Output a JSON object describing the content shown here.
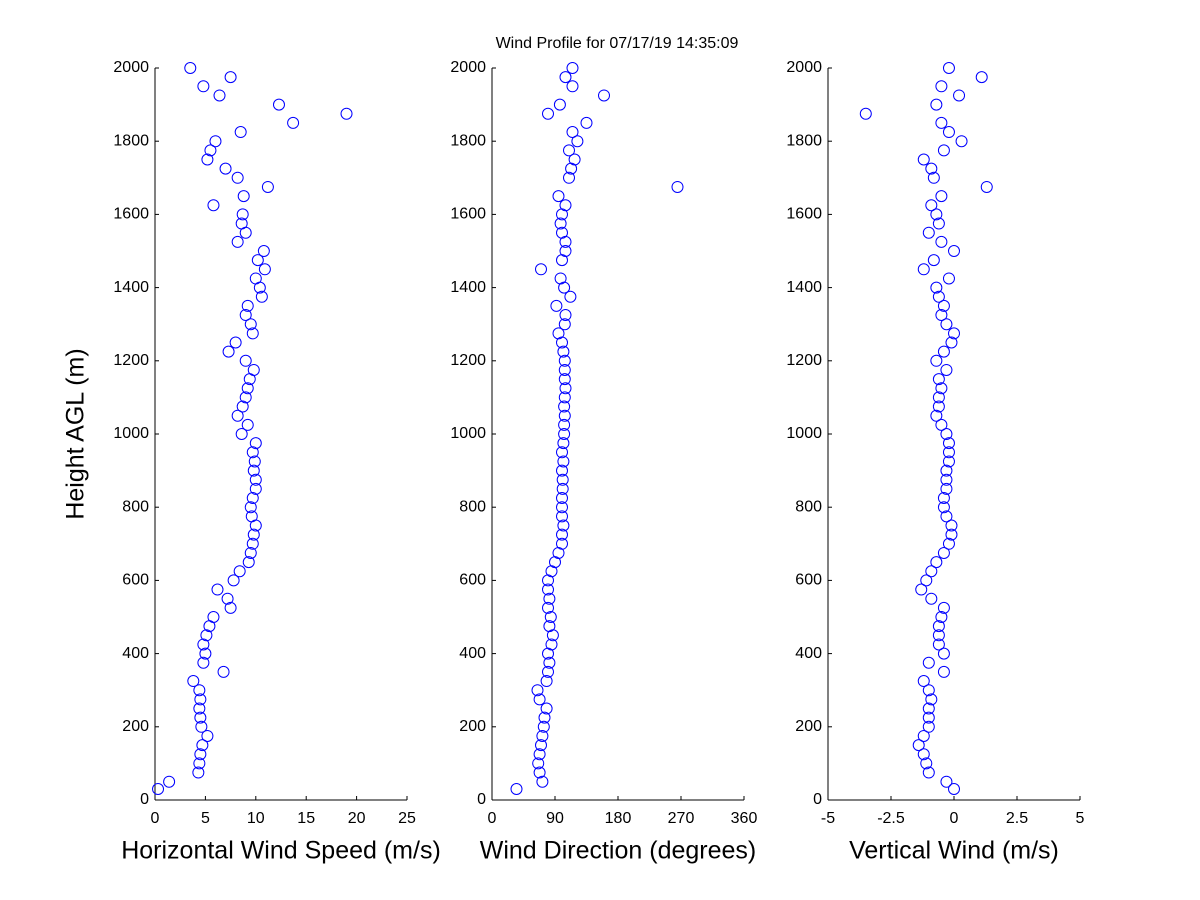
{
  "title": "Wind Profile for  07/17/19 14:35:09",
  "chart_data": [
    {
      "type": "scatter",
      "xlabel": "Horizontal Wind Speed (m/s)",
      "ylabel": "Height AGL (m)",
      "color": "#0000ff",
      "xlim": [
        0,
        25
      ],
      "xticks": [
        0,
        5,
        10,
        15,
        20,
        25
      ],
      "ylim": [
        0,
        2000
      ],
      "yticks": [
        0,
        200,
        400,
        600,
        800,
        1000,
        1200,
        1400,
        1600,
        1800,
        2000
      ],
      "x": [
        0.3,
        1.4,
        4.3,
        4.4,
        4.5,
        4.7,
        5.2,
        4.6,
        4.5,
        4.4,
        4.5,
        4.4,
        3.8,
        6.8,
        4.8,
        5.0,
        4.8,
        5.1,
        5.4,
        5.8,
        7.5,
        7.2,
        6.2,
        7.8,
        8.4,
        9.3,
        9.5,
        9.7,
        9.8,
        10.0,
        9.6,
        9.5,
        9.7,
        10.0,
        10.0,
        9.8,
        9.9,
        9.7,
        10.0,
        8.6,
        9.2,
        8.2,
        8.7,
        9.0,
        9.2,
        9.4,
        9.8,
        9.0,
        7.3,
        8.0,
        9.7,
        9.5,
        9.0,
        9.2,
        10.6,
        10.4,
        10.0,
        10.9,
        10.2,
        10.8,
        8.2,
        9.0,
        8.6,
        8.7,
        5.8,
        8.8,
        11.2,
        8.2,
        7.0,
        5.2,
        5.5,
        6.0,
        8.5,
        13.7,
        19.0,
        12.3,
        6.4,
        4.8,
        7.5,
        3.5
      ],
      "values": [
        30,
        50,
        75,
        100,
        125,
        150,
        175,
        200,
        225,
        250,
        275,
        300,
        325,
        350,
        375,
        400,
        425,
        450,
        475,
        500,
        525,
        550,
        575,
        600,
        625,
        650,
        675,
        700,
        725,
        750,
        775,
        800,
        825,
        850,
        875,
        900,
        925,
        950,
        975,
        1000,
        1025,
        1050,
        1075,
        1100,
        1125,
        1150,
        1175,
        1200,
        1225,
        1250,
        1275,
        1300,
        1325,
        1350,
        1375,
        1400,
        1425,
        1450,
        1475,
        1500,
        1525,
        1550,
        1575,
        1600,
        1625,
        1650,
        1675,
        1700,
        1725,
        1750,
        1775,
        1800,
        1825,
        1850,
        1875,
        1900,
        1925,
        1950,
        1975,
        2000
      ]
    },
    {
      "type": "scatter",
      "xlabel": "Wind Direction (degrees)",
      "color": "#0000ff",
      "xlim": [
        0,
        360
      ],
      "xticks": [
        0,
        90,
        180,
        270,
        360
      ],
      "ylim": [
        0,
        2000
      ],
      "yticks": [
        0,
        200,
        400,
        600,
        800,
        1000,
        1200,
        1400,
        1600,
        1800,
        2000
      ],
      "x": [
        35,
        72,
        68,
        66,
        68,
        70,
        72,
        74,
        75,
        78,
        68,
        65,
        78,
        80,
        82,
        80,
        85,
        87,
        82,
        84,
        80,
        82,
        80,
        80,
        85,
        90,
        95,
        100,
        100,
        102,
        100,
        100,
        100,
        101,
        101,
        100,
        102,
        100,
        102,
        103,
        103,
        104,
        103,
        104,
        105,
        104,
        104,
        104,
        102,
        100,
        95,
        104,
        105,
        92,
        112,
        103,
        98,
        70,
        100,
        105,
        105,
        100,
        98,
        100,
        105,
        95,
        265,
        110,
        113,
        118,
        110,
        122,
        115,
        135,
        80,
        97,
        160,
        115,
        105,
        115
      ],
      "values": [
        30,
        50,
        75,
        100,
        125,
        150,
        175,
        200,
        225,
        250,
        275,
        300,
        325,
        350,
        375,
        400,
        425,
        450,
        475,
        500,
        525,
        550,
        575,
        600,
        625,
        650,
        675,
        700,
        725,
        750,
        775,
        800,
        825,
        850,
        875,
        900,
        925,
        950,
        975,
        1000,
        1025,
        1050,
        1075,
        1100,
        1125,
        1150,
        1175,
        1200,
        1225,
        1250,
        1275,
        1300,
        1325,
        1350,
        1375,
        1400,
        1425,
        1450,
        1475,
        1500,
        1525,
        1550,
        1575,
        1600,
        1625,
        1650,
        1675,
        1700,
        1725,
        1750,
        1775,
        1800,
        1825,
        1850,
        1875,
        1900,
        1925,
        1950,
        1975,
        2000
      ]
    },
    {
      "type": "scatter",
      "xlabel": "Vertical Wind (m/s)",
      "color": "#0000ff",
      "xlim": [
        -5,
        5
      ],
      "xticks": [
        -5,
        -2.5,
        0,
        2.5,
        5
      ],
      "ylim": [
        0,
        2000
      ],
      "yticks": [
        0,
        200,
        400,
        600,
        800,
        1000,
        1200,
        1400,
        1600,
        1800,
        2000
      ],
      "x": [
        0,
        -0.3,
        -1,
        -1.1,
        -1.2,
        -1.4,
        -1.2,
        -1,
        -1,
        -1,
        -0.9,
        -1,
        -1.2,
        -0.4,
        -1,
        -0.4,
        -0.6,
        -0.6,
        -0.6,
        -0.5,
        -0.4,
        -0.9,
        -1.3,
        -1.1,
        -0.9,
        -0.7,
        -0.4,
        -0.2,
        -0.1,
        -0.1,
        -0.3,
        -0.4,
        -0.4,
        -0.3,
        -0.3,
        -0.3,
        -0.2,
        -0.2,
        -0.2,
        -0.3,
        -0.5,
        -0.7,
        -0.6,
        -0.6,
        -0.5,
        -0.6,
        -0.3,
        -0.7,
        -0.4,
        -0.1,
        0,
        -0.3,
        -0.5,
        -0.4,
        -0.6,
        -0.7,
        -0.2,
        -1.2,
        -0.8,
        0,
        -0.5,
        -1.0,
        -0.6,
        -0.7,
        -0.9,
        -0.5,
        1.3,
        -0.8,
        -0.9,
        -1.2,
        -0.4,
        0.3,
        -0.2,
        -0.5,
        -3.5,
        -0.7,
        0.2,
        -0.5,
        1.1,
        -0.2
      ],
      "values": [
        30,
        50,
        75,
        100,
        125,
        150,
        175,
        200,
        225,
        250,
        275,
        300,
        325,
        350,
        375,
        400,
        425,
        450,
        475,
        500,
        525,
        550,
        575,
        600,
        625,
        650,
        675,
        700,
        725,
        750,
        775,
        800,
        825,
        850,
        875,
        900,
        925,
        950,
        975,
        1000,
        1025,
        1050,
        1075,
        1100,
        1125,
        1150,
        1175,
        1200,
        1225,
        1250,
        1275,
        1300,
        1325,
        1350,
        1375,
        1400,
        1425,
        1450,
        1475,
        1500,
        1525,
        1550,
        1575,
        1600,
        1625,
        1650,
        1675,
        1700,
        1725,
        1750,
        1775,
        1800,
        1825,
        1850,
        1875,
        1900,
        1925,
        1950,
        1975,
        2000
      ]
    }
  ]
}
